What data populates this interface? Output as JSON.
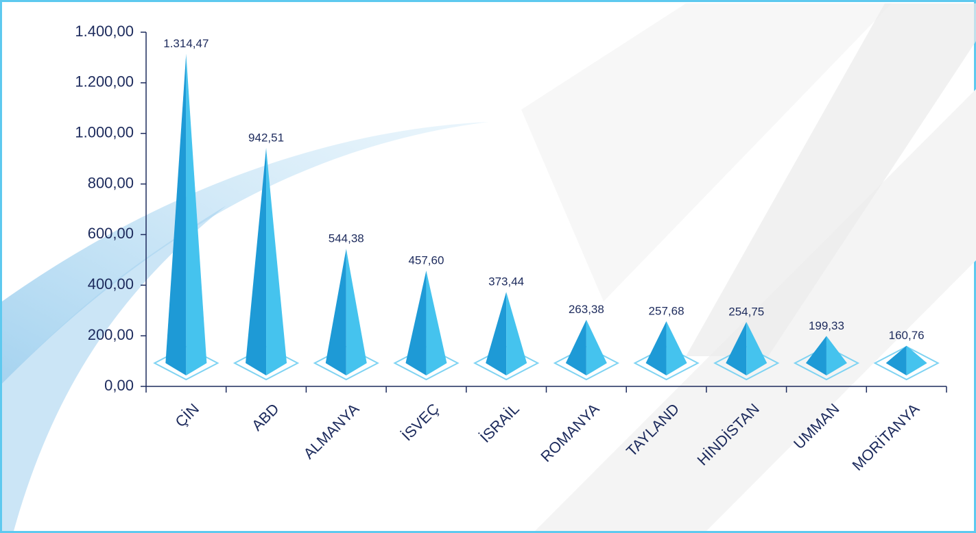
{
  "chart_data": {
    "type": "bar",
    "categories": [
      "ÇİN",
      "ABD",
      "ALMANYA",
      "İSVEÇ",
      "İSRAİL",
      "ROMANYA",
      "TAYLAND",
      "HİNDİSTAN",
      "UMMAN",
      "MORİTANYA"
    ],
    "values": [
      1314.47,
      942.51,
      544.38,
      457.6,
      373.44,
      263.38,
      257.68,
      254.75,
      199.33,
      160.76
    ],
    "value_labels": [
      "1.314,47",
      "942,51",
      "544,38",
      "457,60",
      "373,44",
      "263,38",
      "257,68",
      "254,75",
      "199,33",
      "160,76"
    ],
    "color": "#1e9ad6",
    "ylim": [
      0,
      1400
    ],
    "yticks": [
      {
        "value": 0,
        "label": "0,00"
      },
      {
        "value": 200,
        "label": "200,00"
      },
      {
        "value": 400,
        "label": "400,00"
      },
      {
        "value": 600,
        "label": "600,00"
      },
      {
        "value": 800,
        "label": "800,00"
      },
      {
        "value": 1000,
        "label": "1.000,00"
      },
      {
        "value": 1200,
        "label": "1.200,00"
      },
      {
        "value": 1400,
        "label": "1.400,00"
      }
    ]
  }
}
